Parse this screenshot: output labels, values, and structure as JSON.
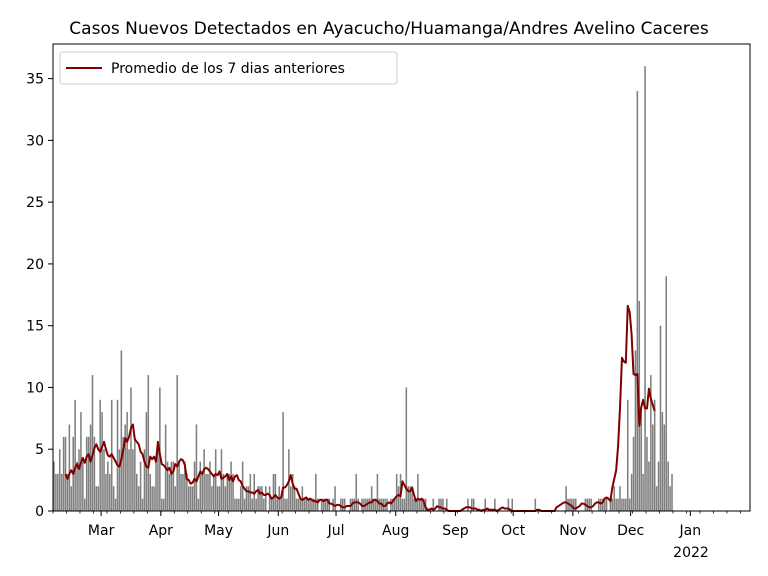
{
  "chart_data": {
    "type": "bar",
    "title": "Casos Nuevos Detectados en Ayacucho/Huamanga/Andres Avelino Caceres",
    "xlabel": "",
    "ylabel": "",
    "x_start": "2021-02-04",
    "x_end": "2022-01-31",
    "ylim": [
      0,
      37.8
    ],
    "y_ticks": [
      0,
      5,
      10,
      15,
      20,
      25,
      30,
      35
    ],
    "y_tick_labels": [
      "0",
      "5",
      "10",
      "15",
      "20",
      "25",
      "30",
      "35"
    ],
    "x_ticks": [
      {
        "date": "2021-03-01",
        "label": "Mar"
      },
      {
        "date": "2021-04-01",
        "label": "Apr"
      },
      {
        "date": "2021-05-01",
        "label": "May"
      },
      {
        "date": "2021-06-01",
        "label": "Jun"
      },
      {
        "date": "2021-07-01",
        "label": "Jul"
      },
      {
        "date": "2021-08-01",
        "label": "Aug"
      },
      {
        "date": "2021-09-01",
        "label": "Sep"
      },
      {
        "date": "2021-10-01",
        "label": "Oct"
      },
      {
        "date": "2021-11-01",
        "label": "Nov"
      },
      {
        "date": "2021-12-01",
        "label": "Dec"
      },
      {
        "date": "2022-01-01",
        "label": "Jan"
      }
    ],
    "x_secondary_label": "2022",
    "grid": false,
    "legend_position": "top-left",
    "bar_color": "#7f7f7f",
    "line_color": "#800000",
    "series": [
      {
        "type": "bar",
        "values": [
          4,
          3,
          3,
          5,
          3,
          6,
          6,
          3,
          7,
          2,
          6,
          9,
          4,
          5,
          8,
          4,
          1,
          6,
          6,
          7,
          11,
          6,
          2,
          2,
          9,
          8,
          5,
          3,
          4,
          3,
          9,
          2,
          1,
          9,
          5,
          13,
          6,
          7,
          8,
          5,
          10,
          5,
          6,
          3,
          2,
          4,
          1,
          5,
          8,
          11,
          3,
          2,
          2,
          4,
          5,
          10,
          1,
          1,
          7,
          4,
          3,
          4,
          4,
          2,
          11,
          4,
          3,
          3,
          4,
          3,
          2,
          2,
          2,
          4,
          7,
          1,
          4,
          3,
          5,
          3,
          3,
          4,
          2,
          3,
          5,
          2,
          2,
          5,
          3,
          2,
          3,
          3,
          4,
          3,
          1,
          1,
          1,
          2,
          4,
          1,
          2,
          2,
          3,
          1,
          3,
          1,
          2,
          2,
          2,
          1,
          2,
          0,
          2,
          1,
          3,
          3,
          1,
          2,
          1,
          8,
          1,
          1,
          5,
          2,
          3,
          2,
          1,
          1,
          1,
          2,
          1,
          1,
          1,
          1,
          1,
          1,
          3,
          1,
          0,
          1,
          1,
          1,
          1,
          1,
          0,
          1,
          2,
          0,
          0,
          1,
          1,
          1,
          0,
          0,
          1,
          1,
          1,
          3,
          1,
          0,
          1,
          1,
          1,
          1,
          1,
          2,
          1,
          1,
          3,
          1,
          1,
          1,
          1,
          1,
          0,
          1,
          1,
          1,
          3,
          2,
          3,
          1,
          1,
          10,
          2,
          2,
          2,
          1,
          1,
          3,
          1,
          1,
          1,
          1,
          0,
          0,
          0,
          1,
          0,
          0,
          1,
          1,
          1,
          0,
          1,
          0,
          0,
          0,
          0,
          0,
          0,
          0,
          0,
          0,
          0,
          1,
          0,
          1,
          1,
          0,
          0,
          0,
          0,
          0,
          1,
          0,
          0,
          0,
          0,
          1,
          0,
          0,
          0,
          0,
          0,
          0,
          1,
          0,
          1,
          0,
          0,
          0,
          0,
          0,
          0,
          0,
          0,
          0,
          0,
          0,
          1,
          0,
          0,
          0,
          0,
          0,
          0,
          0,
          0,
          0,
          0,
          0,
          0,
          0,
          0,
          0,
          2,
          1,
          1,
          1,
          1,
          1,
          0,
          0,
          0,
          0,
          1,
          1,
          1,
          1,
          0,
          0,
          0,
          1,
          1,
          1,
          1,
          1,
          0,
          1,
          1,
          2,
          1,
          1,
          2,
          1,
          1,
          1,
          9,
          1,
          3,
          6,
          13,
          34,
          17,
          8,
          3,
          36,
          6,
          4,
          11,
          7,
          9,
          2,
          4,
          15,
          8,
          7,
          19,
          4,
          2,
          3
        ]
      },
      {
        "type": "line",
        "name": "Promedio de los 7 dias anteriores",
        "start_index": 6,
        "values": [
          3.0,
          2.6,
          3.0,
          3.3,
          3.0,
          3.5,
          3.8,
          3.4,
          3.9,
          4.3,
          3.9,
          4.4,
          4.6,
          4.0,
          4.5,
          5.1,
          5.4,
          5.0,
          4.8,
          5.2,
          5.6,
          5.0,
          4.5,
          4.4,
          4.6,
          4.3,
          4.0,
          3.7,
          3.6,
          4.2,
          5.0,
          5.9,
          5.6,
          6.0,
          6.7,
          7.0,
          5.8,
          5.6,
          5.4,
          4.8,
          4.6,
          4.0,
          3.6,
          3.5,
          4.4,
          4.2,
          4.4,
          4.0,
          5.6,
          4.6,
          3.8,
          3.7,
          3.5,
          3.3,
          3.5,
          3.0,
          3.2,
          3.8,
          3.6,
          4.0,
          4.2,
          4.1,
          3.7,
          2.6,
          2.5,
          2.2,
          2.3,
          2.6,
          2.4,
          2.8,
          3.2,
          3.0,
          3.4,
          3.5,
          3.4,
          3.2,
          3.0,
          2.8,
          3.0,
          2.9,
          3.2,
          2.6,
          2.7,
          2.8,
          3.0,
          2.5,
          2.8,
          2.4,
          2.8,
          2.9,
          2.5,
          2.4,
          2.0,
          1.8,
          1.6,
          1.6,
          1.5,
          1.5,
          1.4,
          1.6,
          1.7,
          1.4,
          1.5,
          1.3,
          1.3,
          1.4,
          1.3,
          1.0,
          1.1,
          1.3,
          1.1,
          1.0,
          1.1,
          1.9,
          1.9,
          2.1,
          2.4,
          2.9,
          2.2,
          1.8,
          1.8,
          1.4,
          1.0,
          0.9,
          1.0,
          1.1,
          0.9,
          1.0,
          0.9,
          0.8,
          0.8,
          0.7,
          0.9,
          0.9,
          0.8,
          0.9,
          0.9,
          0.6,
          0.6,
          0.5,
          0.4,
          0.5,
          0.5,
          0.4,
          0.3,
          0.3,
          0.4,
          0.4,
          0.4,
          0.6,
          0.7,
          0.7,
          0.7,
          0.6,
          0.4,
          0.4,
          0.5,
          0.6,
          0.7,
          0.7,
          0.9,
          0.9,
          0.8,
          0.6,
          0.6,
          0.4,
          0.4,
          0.6,
          0.7,
          0.6,
          0.8,
          1.0,
          1.2,
          1.3,
          1.2,
          2.4,
          2.1,
          1.8,
          1.6,
          1.6,
          1.9,
          1.3,
          0.8,
          1.0,
          0.9,
          1.0,
          0.8,
          0.3,
          0.1,
          0.1,
          0.2,
          0.1,
          0.2,
          0.4,
          0.3,
          0.3,
          0.2,
          0.2,
          0.1,
          0.0,
          0.0,
          0.0,
          0.0,
          0.0,
          0.0,
          0.0,
          0.1,
          0.2,
          0.3,
          0.3,
          0.3,
          0.2,
          0.2,
          0.2,
          0.1,
          0.1,
          0.0,
          0.1,
          0.1,
          0.2,
          0.1,
          0.1,
          0.1,
          0.1,
          0.0,
          0.1,
          0.2,
          0.3,
          0.2,
          0.2,
          0.2,
          0.1,
          0.0,
          0.0,
          0.0,
          0.0,
          0.0,
          0.0,
          0.0,
          0.0,
          0.0,
          0.0,
          0.0,
          0.0,
          0.0,
          0.1,
          0.1,
          0.0,
          0.0,
          0.0,
          0.0,
          0.0,
          0.0,
          0.0,
          0.0,
          0.3,
          0.4,
          0.5,
          0.6,
          0.7,
          0.7,
          0.6,
          0.5,
          0.4,
          0.2,
          0.2,
          0.3,
          0.4,
          0.6,
          0.6,
          0.5,
          0.4,
          0.3,
          0.3,
          0.4,
          0.6,
          0.7,
          0.7,
          0.6,
          0.7,
          1.0,
          1.1,
          1.0,
          0.8,
          1.9,
          2.6,
          3.3,
          5.3,
          8.4,
          12.4,
          12.1,
          12.0,
          16.6,
          16.1,
          14.3,
          11.1,
          11.0,
          11.1,
          6.9,
          8.4,
          9.0,
          8.3,
          8.3,
          9.9,
          9.1,
          8.6,
          8.1
        ]
      }
    ]
  }
}
